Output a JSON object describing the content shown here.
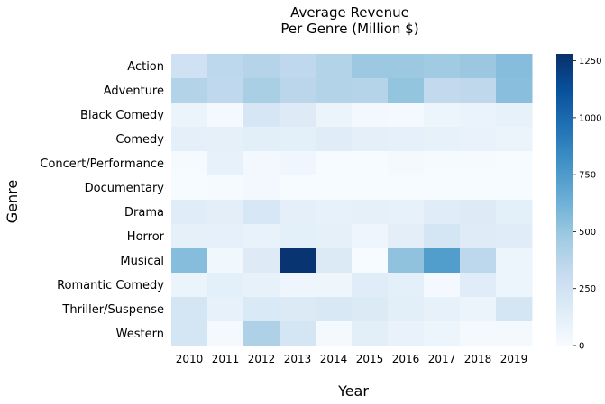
{
  "chart_data": {
    "type": "heatmap",
    "title": [
      "Average Revenue",
      "Per Genre (Million $)"
    ],
    "xlabel": "Year",
    "ylabel": "Genre",
    "x": [
      "2010",
      "2011",
      "2012",
      "2013",
      "2014",
      "2015",
      "2016",
      "2017",
      "2018",
      "2019"
    ],
    "y": [
      "Action",
      "Adventure",
      "Black Comedy",
      "Comedy",
      "Concert/Performance",
      "Documentary",
      "Drama",
      "Horror",
      "Musical",
      "Romantic Comedy",
      "Thriller/Suspense",
      "Western"
    ],
    "values": [
      [
        260,
        355,
        385,
        345,
        395,
        485,
        485,
        470,
        490,
        555
      ],
      [
        395,
        345,
        435,
        365,
        395,
        385,
        510,
        335,
        350,
        545
      ],
      [
        75,
        25,
        215,
        160,
        75,
        30,
        25,
        70,
        85,
        105
      ],
      [
        120,
        115,
        135,
        125,
        150,
        120,
        110,
        100,
        90,
        75
      ],
      [
        10,
        105,
        30,
        50,
        5,
        5,
        20,
        10,
        10,
        5
      ],
      [
        5,
        10,
        30,
        5,
        5,
        5,
        5,
        5,
        5,
        5
      ],
      [
        150,
        130,
        205,
        120,
        105,
        115,
        100,
        145,
        160,
        125
      ],
      [
        115,
        110,
        95,
        125,
        115,
        60,
        130,
        225,
        155,
        145
      ],
      [
        555,
        45,
        160,
        1260,
        175,
        5,
        525,
        740,
        355,
        70
      ],
      [
        75,
        125,
        105,
        60,
        55,
        145,
        125,
        25,
        150,
        65
      ],
      [
        225,
        105,
        185,
        175,
        195,
        175,
        135,
        105,
        80,
        225
      ],
      [
        225,
        20,
        415,
        225,
        20,
        135,
        90,
        70,
        20,
        20
      ]
    ],
    "vmin": 0,
    "vmax": 1280,
    "colorbar_ticks": [
      0,
      250,
      500,
      750,
      1000,
      1250
    ],
    "colormap": "Blues",
    "colormap_stops": [
      "#f7fbff",
      "#deebf7",
      "#c6dbef",
      "#9ecae1",
      "#6baed6",
      "#4292c6",
      "#2171b5",
      "#08519c",
      "#08306b"
    ]
  }
}
